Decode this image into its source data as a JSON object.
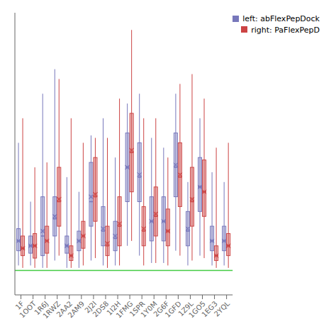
{
  "chart_data": {
    "type": "box",
    "categories": [
      "1F",
      "1OOT",
      "1R6J",
      "1RWZ",
      "2AA2",
      "2AM9",
      "2J2I",
      "2DS8",
      "1I2H",
      "1FMG",
      "1SPR",
      "1Y0M",
      "2G6F",
      "1GFD",
      "1Z9L",
      "1GO5",
      "1EG3",
      "2YQL"
    ],
    "ylim": [
      -0.1,
      1.05
    ],
    "tick_labels": "x",
    "legend": "upper right",
    "hlines": [
      {
        "y": 0.0,
        "color": "#44cc44"
      }
    ],
    "series": [
      {
        "name": "left: abFlexPepDock",
        "color": "#7777bb",
        "values": [
          {
            "q1": 0.08,
            "median": 0.12,
            "q3": 0.17,
            "whisker_low": 0.02,
            "whisker_high": 0.52,
            "mean": 0.12
          },
          {
            "q1": 0.07,
            "median": 0.1,
            "q3": 0.14,
            "whisker_low": 0.02,
            "whisker_high": 0.28,
            "mean": 0.1
          },
          {
            "q1": 0.06,
            "median": 0.14,
            "q3": 0.3,
            "whisker_low": 0.01,
            "whisker_high": 0.72,
            "mean": 0.16
          },
          {
            "q1": 0.14,
            "median": 0.21,
            "q3": 0.3,
            "whisker_low": 0.04,
            "whisker_high": 0.82,
            "mean": 0.22
          },
          {
            "q1": 0.07,
            "median": 0.1,
            "q3": 0.14,
            "whisker_low": 0.01,
            "whisker_high": 0.38,
            "mean": 0.1
          },
          {
            "q1": 0.08,
            "median": 0.12,
            "q3": 0.16,
            "whisker_low": 0.01,
            "whisker_high": 0.32,
            "mean": 0.12
          },
          {
            "q1": 0.18,
            "median": 0.28,
            "q3": 0.44,
            "whisker_low": 0.04,
            "whisker_high": 0.55,
            "mean": 0.3
          },
          {
            "q1": 0.1,
            "median": 0.16,
            "q3": 0.26,
            "whisker_low": 0.02,
            "whisker_high": 0.62,
            "mean": 0.17
          },
          {
            "q1": 0.08,
            "median": 0.13,
            "q3": 0.2,
            "whisker_low": 0.02,
            "whisker_high": 0.46,
            "mean": 0.14
          },
          {
            "q1": 0.28,
            "median": 0.42,
            "q3": 0.56,
            "whisker_low": 0.1,
            "whisker_high": 0.68,
            "mean": 0.42
          },
          {
            "q1": 0.28,
            "median": 0.38,
            "q3": 0.52,
            "whisker_low": 0.06,
            "whisker_high": 0.72,
            "mean": 0.39
          },
          {
            "q1": 0.12,
            "median": 0.2,
            "q3": 0.3,
            "whisker_low": 0.03,
            "whisker_high": 0.54,
            "mean": 0.2
          },
          {
            "q1": 0.12,
            "median": 0.2,
            "q3": 0.3,
            "whisker_low": 0.03,
            "whisker_high": 0.5,
            "mean": 0.2
          },
          {
            "q1": 0.3,
            "median": 0.42,
            "q3": 0.56,
            "whisker_low": 0.08,
            "whisker_high": 0.72,
            "mean": 0.43
          },
          {
            "q1": 0.1,
            "median": 0.16,
            "q3": 0.24,
            "whisker_low": 0.02,
            "whisker_high": 0.36,
            "mean": 0.17
          },
          {
            "q1": 0.24,
            "median": 0.34,
            "q3": 0.46,
            "whisker_low": 0.06,
            "whisker_high": 0.62,
            "mean": 0.34
          },
          {
            "q1": 0.08,
            "median": 0.12,
            "q3": 0.18,
            "whisker_low": 0.02,
            "whisker_high": 0.4,
            "mean": 0.12
          },
          {
            "q1": 0.08,
            "median": 0.12,
            "q3": 0.18,
            "whisker_low": 0.02,
            "whisker_high": 0.36,
            "mean": 0.12
          }
        ]
      },
      {
        "name": "right: PaFlexPepD",
        "color": "#cc4444",
        "values": [
          {
            "q1": 0.06,
            "median": 0.09,
            "q3": 0.14,
            "whisker_low": 0.01,
            "whisker_high": 0.62,
            "mean": 0.09
          },
          {
            "q1": 0.05,
            "median": 0.1,
            "q3": 0.15,
            "whisker_low": 0.01,
            "whisker_high": 0.42,
            "mean": 0.1
          },
          {
            "q1": 0.07,
            "median": 0.12,
            "q3": 0.18,
            "whisker_low": 0.01,
            "whisker_high": 0.44,
            "mean": 0.12
          },
          {
            "q1": 0.18,
            "median": 0.28,
            "q3": 0.42,
            "whisker_low": 0.06,
            "whisker_high": 0.78,
            "mean": 0.29
          },
          {
            "q1": 0.04,
            "median": 0.06,
            "q3": 0.1,
            "whisker_low": 0.01,
            "whisker_high": 0.62,
            "mean": 0.06
          },
          {
            "q1": 0.09,
            "median": 0.14,
            "q3": 0.2,
            "whisker_low": 0.02,
            "whisker_high": 0.52,
            "mean": 0.14
          },
          {
            "q1": 0.2,
            "median": 0.3,
            "q3": 0.46,
            "whisker_low": 0.05,
            "whisker_high": 0.54,
            "mean": 0.31
          },
          {
            "q1": 0.06,
            "median": 0.1,
            "q3": 0.18,
            "whisker_low": 0.01,
            "whisker_high": 0.54,
            "mean": 0.11
          },
          {
            "q1": 0.1,
            "median": 0.18,
            "q3": 0.3,
            "whisker_low": 0.02,
            "whisker_high": 0.7,
            "mean": 0.19
          },
          {
            "q1": 0.32,
            "median": 0.48,
            "q3": 0.64,
            "whisker_low": 0.12,
            "whisker_high": 0.98,
            "mean": 0.49
          },
          {
            "q1": 0.1,
            "median": 0.16,
            "q3": 0.26,
            "whisker_low": 0.02,
            "whisker_high": 0.62,
            "mean": 0.17
          },
          {
            "q1": 0.14,
            "median": 0.22,
            "q3": 0.34,
            "whisker_low": 0.03,
            "whisker_high": 0.62,
            "mean": 0.23
          },
          {
            "q1": 0.1,
            "median": 0.16,
            "q3": 0.25,
            "whisker_low": 0.02,
            "whisker_high": 0.46,
            "mean": 0.16
          },
          {
            "q1": 0.26,
            "median": 0.38,
            "q3": 0.52,
            "whisker_low": 0.06,
            "whisker_high": 0.76,
            "mean": 0.39
          },
          {
            "q1": 0.18,
            "median": 0.28,
            "q3": 0.42,
            "whisker_low": 0.04,
            "whisker_high": 0.8,
            "mean": 0.29
          },
          {
            "q1": 0.22,
            "median": 0.32,
            "q3": 0.45,
            "whisker_low": 0.05,
            "whisker_high": 0.7,
            "mean": 0.32
          },
          {
            "q1": 0.04,
            "median": 0.06,
            "q3": 0.1,
            "whisker_low": 0.01,
            "whisker_high": 0.5,
            "mean": 0.06
          },
          {
            "q1": 0.06,
            "median": 0.1,
            "q3": 0.15,
            "whisker_low": 0.01,
            "whisker_high": 0.52,
            "mean": 0.1
          }
        ]
      }
    ]
  }
}
